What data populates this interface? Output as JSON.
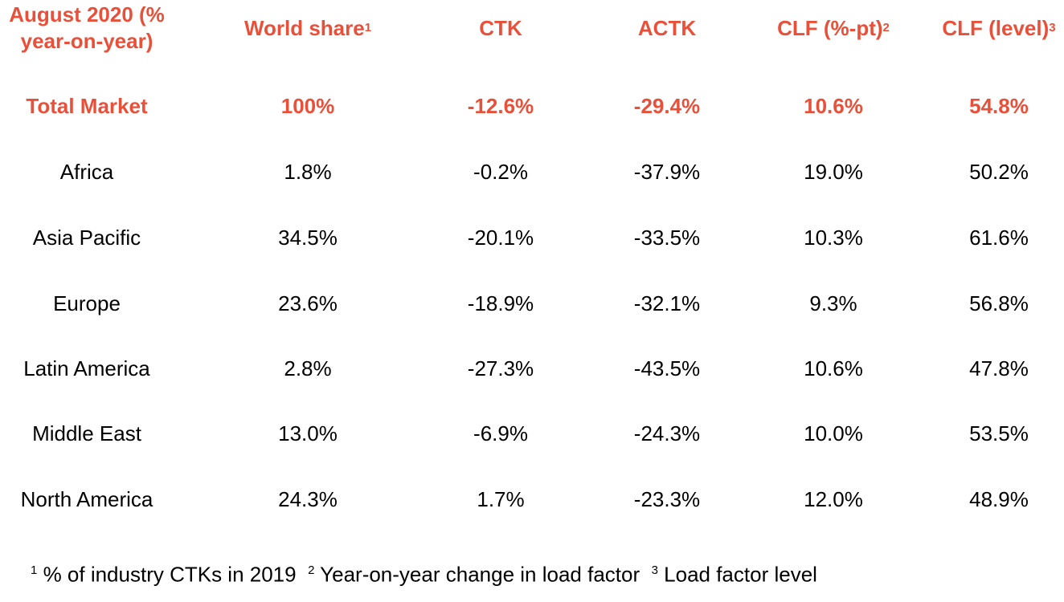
{
  "header": {
    "period_line1": "August 2020 (%",
    "period_line2": "year-on-year)",
    "world_share": "World share",
    "world_share_sup": "1",
    "ctk": "CTK",
    "actk": "ACTK",
    "clf_pt": "CLF (%-pt)",
    "clf_pt_sup": "2",
    "clf_level": "CLF (level)",
    "clf_level_sup": "3"
  },
  "total": {
    "label": "Total Market",
    "world_share": "100%",
    "ctk": "-12.6%",
    "actk": "-29.4%",
    "clf_pt": "10.6%",
    "clf_level": "54.8%"
  },
  "rows": [
    {
      "region": "Africa",
      "world_share": "1.8%",
      "ctk": "-0.2%",
      "actk": "-37.9%",
      "clf_pt": "19.0%",
      "clf_level": "50.2%"
    },
    {
      "region": "Asia Pacific",
      "world_share": "34.5%",
      "ctk": "-20.1%",
      "actk": "-33.5%",
      "clf_pt": "10.3%",
      "clf_level": "61.6%"
    },
    {
      "region": "Europe",
      "world_share": "23.6%",
      "ctk": "-18.9%",
      "actk": "-32.1%",
      "clf_pt": "9.3%",
      "clf_level": "56.8%"
    },
    {
      "region": "Latin America",
      "world_share": "2.8%",
      "ctk": "-27.3%",
      "actk": "-43.5%",
      "clf_pt": "10.6%",
      "clf_level": "47.8%"
    },
    {
      "region": "Middle East",
      "world_share": "13.0%",
      "ctk": "-6.9%",
      "actk": "-24.3%",
      "clf_pt": "10.0%",
      "clf_level": "53.5%"
    },
    {
      "region": "North America",
      "world_share": "24.3%",
      "ctk": "1.7%",
      "actk": "-23.3%",
      "clf_pt": "12.0%",
      "clf_level": "48.9%"
    }
  ],
  "footnotes": {
    "n1_sup": "1",
    "n1_text": " % of industry CTKs in 2019  ",
    "n2_sup": "2",
    "n2_text": " Year-on-year change in load factor  ",
    "n3_sup": "3",
    "n3_text": " Load factor level"
  },
  "colors": {
    "accent": "#e8503a",
    "text": "#000000",
    "background": "#ffffff"
  }
}
